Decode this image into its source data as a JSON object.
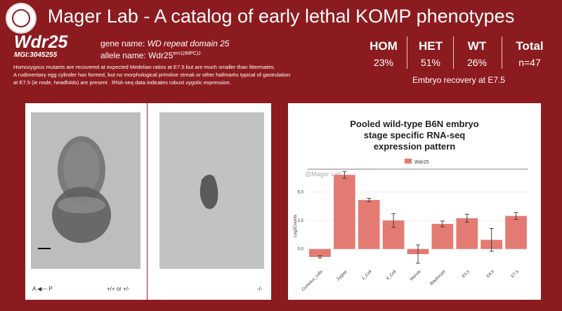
{
  "header": {
    "title": "Mager Lab - A catalog of early lethal KOMP phenotypes"
  },
  "gene": {
    "symbol": "Wdr25",
    "mgi": "MGI:3045255",
    "gene_name_label": "gene name:",
    "gene_name_value": "WD repeat domain 25",
    "allele_name_label": "allele name:",
    "allele_base": "Wdr25",
    "allele_sup": "em1(IMPC)J"
  },
  "description": {
    "line1": "Homozygous mutants are recovered at expected Medelian ratios at E7.5 but are much smaller than littermates.",
    "line2": "A rudimentary egg cylinder has formed, but no morphological primitive streak or other hallmarks  typical of gastrulation",
    "line3": "at E7.5 (ie node, headfolds) are present . RNA-seq data indicates robust zygotic expression."
  },
  "genotype_table": {
    "headers": [
      "HOM",
      "HET",
      "WT",
      "Total"
    ],
    "values": [
      "23%",
      "51%",
      "26%",
      "n=47"
    ],
    "caption": "Embryo recovery at E7.5"
  },
  "images": {
    "axis_label": "A",
    "axis_label_right": "P",
    "wt_label": "+/+ or +/-",
    "mut_label": "-/-"
  },
  "chart_data": {
    "type": "bar",
    "title_lines": [
      "Pooled wild-type B6N embryo",
      "stage specific RNA-seq",
      "expression pattern"
    ],
    "watermark": "@Mager Lab",
    "legend": "Wdr25",
    "ylabel": "Log2Counts",
    "yticks": [
      "5.0",
      "2.5",
      "0.0"
    ],
    "ylim": [
      -1.5,
      7
    ],
    "categories": [
      "Cumulus_cells",
      "Zygote",
      "2_Cell",
      "8_Cell",
      "Morula",
      "Blastocyst",
      "E5.5",
      "E6.5",
      "E7.5"
    ],
    "values": [
      -0.7,
      6.5,
      4.3,
      2.5,
      -0.45,
      2.2,
      2.7,
      0.8,
      2.9
    ],
    "errors": [
      0.1,
      0.3,
      0.15,
      0.6,
      0.8,
      0.25,
      0.35,
      1.0,
      0.3
    ],
    "color": "#e47b72"
  }
}
